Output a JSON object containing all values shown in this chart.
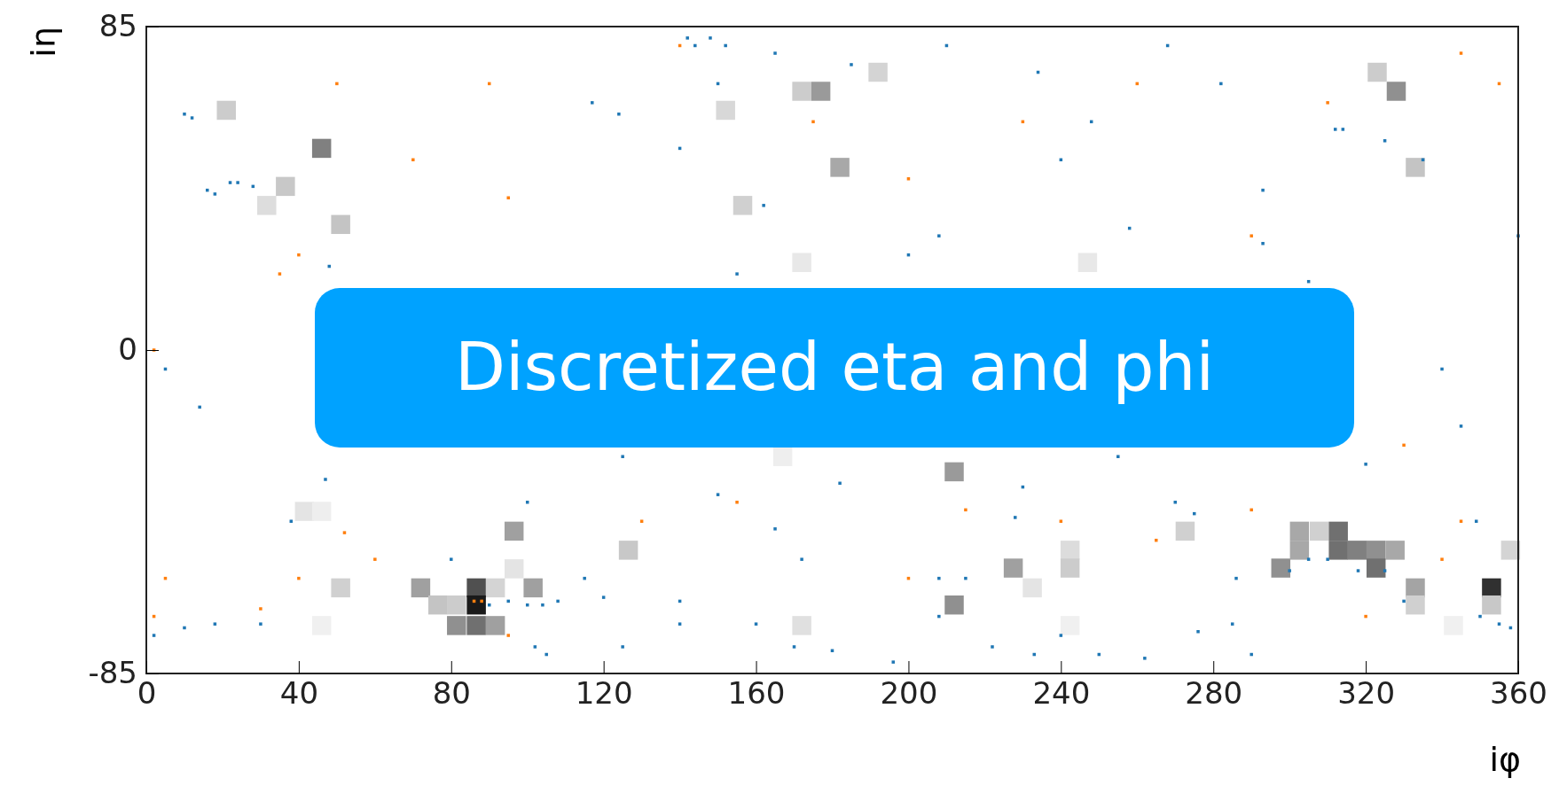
{
  "chart_data": {
    "type": "scatter",
    "xlabel": "iφ",
    "ylabel": "iη",
    "xlim": [
      0,
      360
    ],
    "ylim": [
      -85,
      85
    ],
    "xticks": [
      0,
      40,
      80,
      120,
      160,
      200,
      240,
      280,
      320,
      360
    ],
    "yticks": [
      -85,
      0,
      85
    ],
    "marker": "square",
    "grid": false,
    "annotations": [
      "Discretized eta and phi"
    ],
    "series": [
      {
        "x": [
          21,
          46,
          36.5,
          31.6,
          51,
          152,
          172,
          177,
          192,
          182,
          156.5,
          172,
          247,
          323,
          328,
          333,
          212,
          167,
          41.5,
          46,
          96.5,
          126.5,
          51,
          72,
          76.5,
          81.4,
          86.6,
          91.6,
          101.5,
          86.6,
          96.5,
          81.4,
          86.6,
          91.6,
          46,
          172,
          227.5,
          232.5,
          242.4,
          242.4,
          212,
          242.4,
          272.6,
          302.6,
          307.8,
          312.8,
          297.7,
          302.6,
          312.8,
          317.7,
          322.7,
          327.7,
          322.7,
          333,
          333,
          353,
          353,
          343,
          358
        ],
        "values": [
          63,
          53,
          43,
          38,
          33,
          63,
          68,
          68,
          73,
          48,
          38,
          23,
          23,
          73,
          68,
          48,
          -32,
          -28,
          -42.4,
          -42.4,
          -47.6,
          -52.6,
          -62.5,
          -62.5,
          -67,
          -67,
          -62.5,
          -62.5,
          -62.5,
          -67,
          -57.5,
          -72.4,
          -72.4,
          -72.4,
          -72.4,
          -72.4,
          -57.3,
          -62.5,
          -52.6,
          -57.3,
          -67,
          -72.4,
          -47.6,
          -47.6,
          -47.6,
          -47.6,
          -57.3,
          -52.6,
          -52.6,
          -52.6,
          -52.6,
          -52.6,
          -57.3,
          -62.5,
          -67,
          -62.5,
          -67,
          -72.4,
          -52.6
        ],
        "colors": [
          "#cccccc",
          "#808080",
          "#c8c8c8",
          "#dddddd",
          "#c4c4c4",
          "#d8d8d8",
          "#cccccc",
          "#9a9a9a",
          "#d4d4d4",
          "#a8a8a8",
          "#d0d0d0",
          "#e8e8e8",
          "#e8e8e8",
          "#cccccc",
          "#909090",
          "#c4c4c4",
          "#9a9a9a",
          "#eeeeee",
          "#e4e4e4",
          "#eeeeee",
          "#a0a0a0",
          "#c8c8c8",
          "#d0d0d0",
          "#a0a0a0",
          "#c4c4c4",
          "#cccccc",
          "#505050",
          "#d4d4d4",
          "#a0a0a0",
          "#1a1a1a",
          "#e4e4e4",
          "#909090",
          "#707070",
          "#a0a0a0",
          "#f0f0f0",
          "#e0e0e0",
          "#a0a0a0",
          "#e4e4e4",
          "#dcdcdc",
          "#cccccc",
          "#909090",
          "#f0f0f0",
          "#d0d0d0",
          "#a8a8a8",
          "#d0d0d0",
          "#707070",
          "#909090",
          "#a8a8a8",
          "#707070",
          "#808080",
          "#909090",
          "#a8a8a8",
          "#707070",
          "#a4a4a4",
          "#d0d0d0",
          "#303030",
          "#c8c8c8",
          "#f0f0f0",
          "#d4d4d4"
        ]
      },
      {
        "color": "#1f77b4",
        "x": [
          142,
          144,
          148,
          152,
          165,
          10,
          12,
          16,
          18,
          22,
          24,
          28,
          48,
          5,
          14,
          47,
          38,
          2,
          10,
          18,
          30,
          90,
          95,
          100,
          104,
          108,
          105,
          102,
          125,
          140,
          140,
          160,
          170,
          180,
          196,
          208,
          208,
          215,
          233,
          240,
          222,
          250,
          262,
          276,
          285,
          290,
          270,
          275,
          300,
          305,
          310,
          318,
          325,
          330,
          355,
          358,
          350,
          360,
          340,
          345,
          349,
          312,
          314,
          282,
          293,
          293,
          305,
          325,
          335,
          258,
          240,
          248,
          150,
          117,
          124,
          140,
          155,
          162,
          185,
          210,
          234,
          268,
          200,
          208,
          125,
          165,
          172,
          150,
          182,
          230,
          255,
          228,
          286,
          320,
          100,
          80,
          115,
          120
        ],
        "values": [
          82,
          80,
          82,
          80,
          78,
          62,
          61,
          42,
          41,
          44,
          44,
          43,
          22,
          -5,
          -15,
          -34,
          -45,
          -75,
          -73,
          -72,
          -72,
          -67,
          -66,
          -67,
          -67,
          -66,
          -80,
          -78,
          -78,
          -72,
          -66,
          -72,
          -78,
          -79,
          -82,
          -70,
          -60,
          -60,
          -80,
          -75,
          -78,
          -80,
          -81,
          -74,
          -72,
          -80,
          -40,
          -43,
          -58,
          -55,
          -55,
          -58,
          -58,
          -66,
          -72,
          -73,
          -70,
          30,
          -5,
          -20,
          -45,
          58,
          58,
          70,
          42,
          28,
          18,
          55,
          50,
          32,
          50,
          60,
          70,
          65,
          62,
          53,
          20,
          38,
          75,
          80,
          73,
          80,
          25,
          30,
          -28,
          -47,
          -55,
          -38,
          -35,
          -36,
          -28,
          -44,
          -60,
          -30,
          -40,
          -55,
          -60,
          -65
        ]
      },
      {
        "color": "#ff7f0e",
        "x": [
          30,
          2,
          5,
          40,
          52,
          60,
          86,
          88,
          95,
          130,
          155,
          200,
          215,
          240,
          265,
          290,
          320,
          340,
          345,
          330,
          35,
          40,
          70,
          90,
          140,
          175,
          200,
          230,
          260,
          310,
          345,
          355,
          290,
          95,
          50,
          2
        ],
        "values": [
          -68,
          -70,
          -60,
          -60,
          -48,
          -55,
          -66,
          -66,
          -75,
          -45,
          -40,
          -60,
          -42,
          -45,
          -50,
          -42,
          -70,
          -55,
          -45,
          -25,
          20,
          25,
          50,
          70,
          80,
          60,
          45,
          60,
          70,
          65,
          78,
          70,
          30,
          40,
          70,
          0
        ]
      }
    ]
  }
}
